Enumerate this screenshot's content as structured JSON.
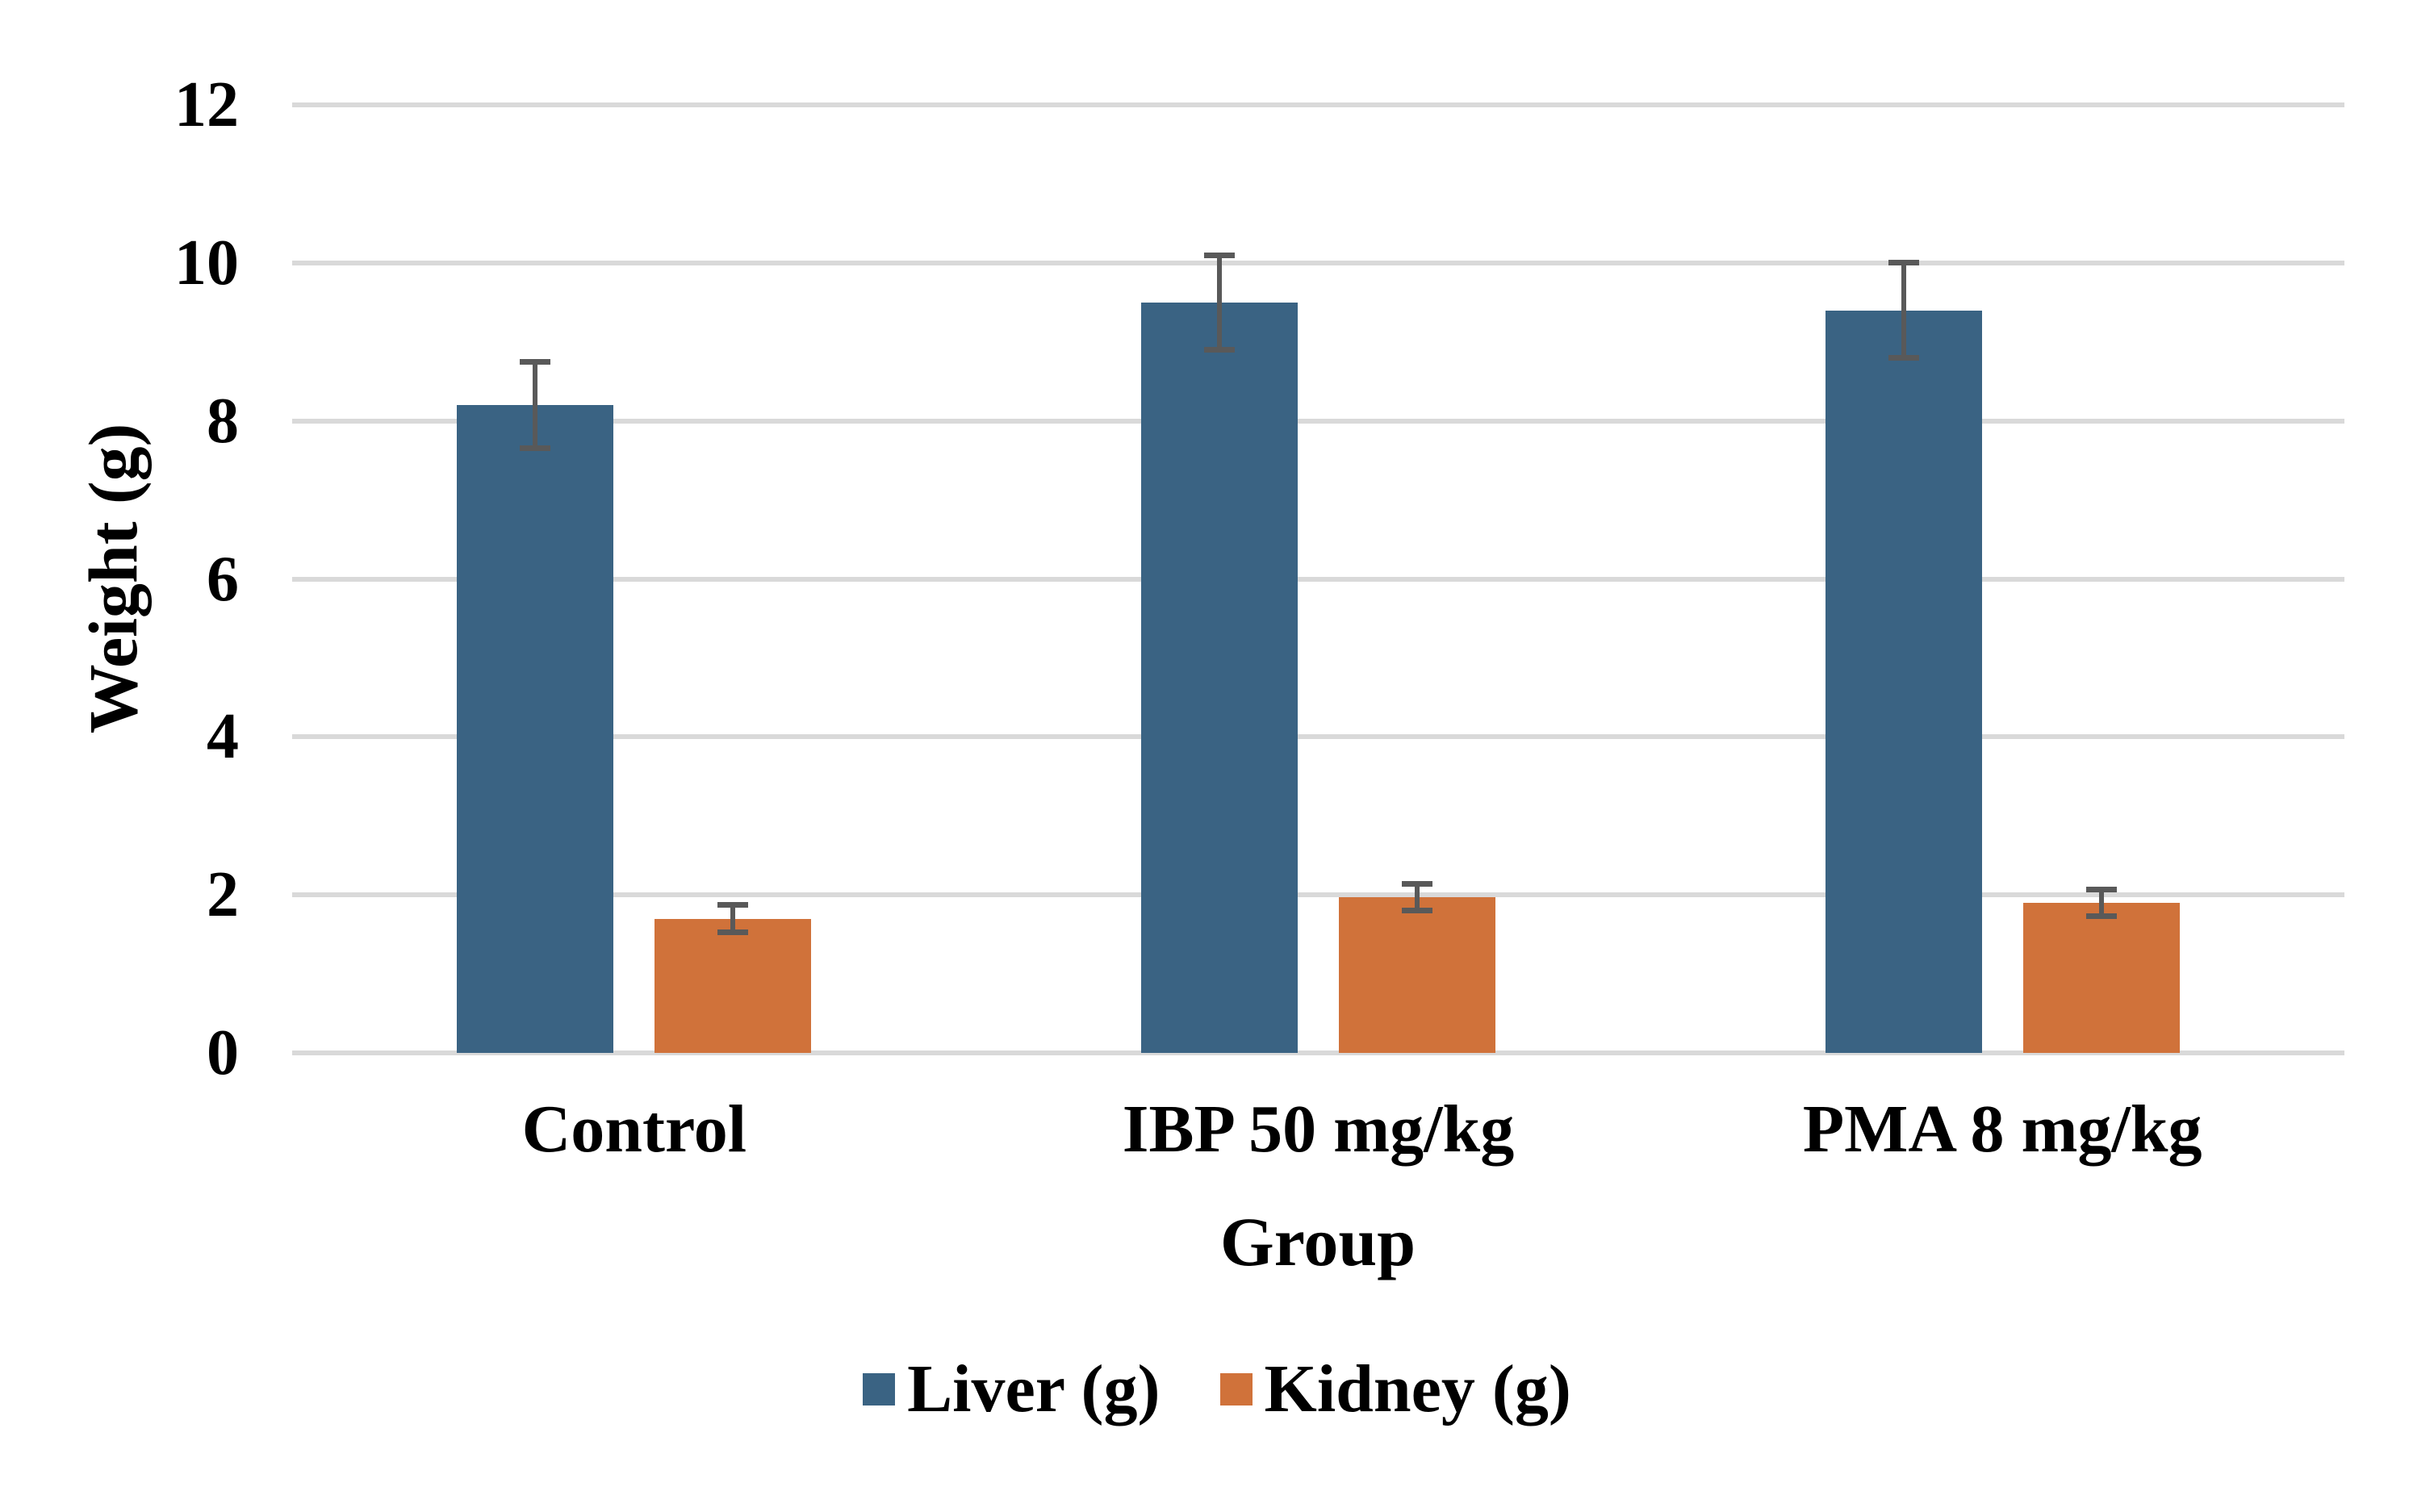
{
  "chart_data": {
    "type": "bar",
    "categories": [
      "Control",
      "IBP 50 mg/kg",
      "PMA 8 mg/kg"
    ],
    "series": [
      {
        "name": "Liver (g)",
        "color": "#3A6383",
        "values": [
          8.2,
          9.5,
          9.4
        ],
        "errors": [
          0.55,
          0.6,
          0.6
        ]
      },
      {
        "name": "Kidney (g)",
        "color": "#D0723A",
        "values": [
          1.7,
          1.97,
          1.9
        ],
        "errors": [
          0.17,
          0.17,
          0.17
        ]
      }
    ],
    "title": "",
    "xlabel": "Group",
    "ylabel": "Weight (g)",
    "ylim": [
      0,
      12
    ],
    "yticks": [
      0,
      2,
      4,
      6,
      8,
      10,
      12
    ],
    "grid": true,
    "gridline_color": "#D9D9D9",
    "error_bar_color": "#595959",
    "background_color": "#FFFFFF",
    "text_color": "#000000",
    "legend_position": "bottom"
  }
}
